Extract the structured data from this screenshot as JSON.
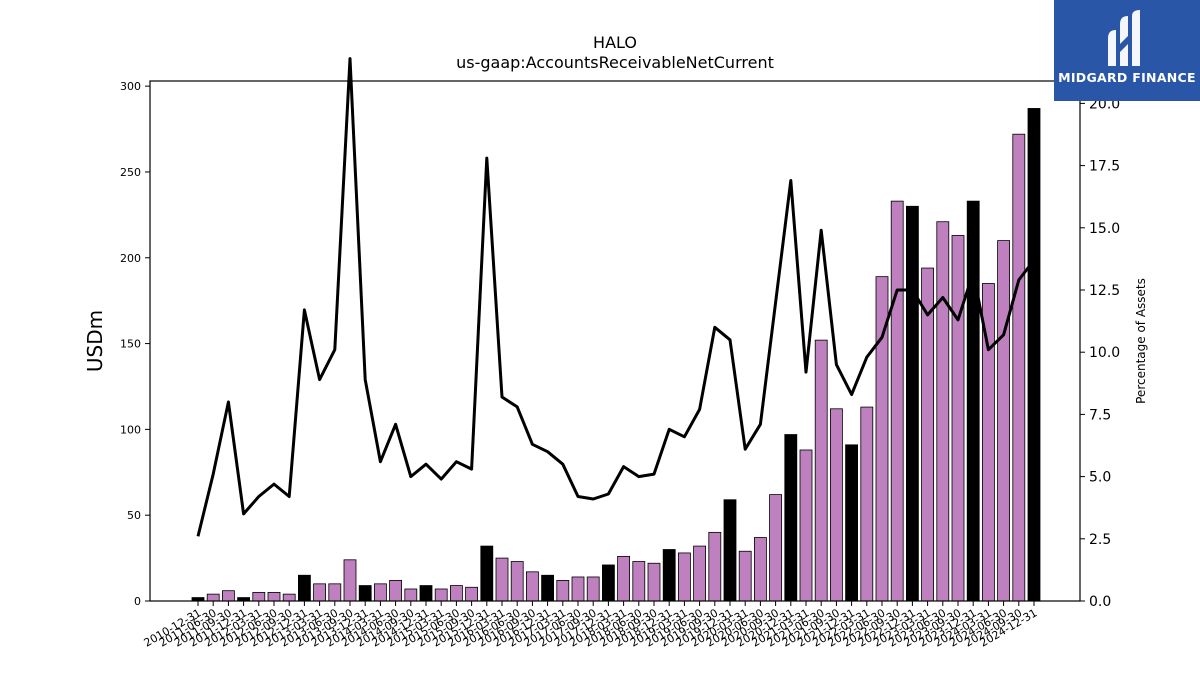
{
  "chart_data": {
    "type": "bar+line",
    "title": "HALO",
    "subtitle": "us-gaap:AccountsReceivableNetCurrent",
    "ylabel_left": "USDm",
    "ylabel_right": "Percentage of Assets",
    "ylim_left": [
      0,
      303
    ],
    "ylim_right": [
      0,
      20.9
    ],
    "yticks_left": [
      "0",
      "50",
      "100",
      "150",
      "200",
      "250",
      "300"
    ],
    "yticks_right": [
      "0.0",
      "2.5",
      "5.0",
      "7.5",
      "10.0",
      "12.5",
      "15.0",
      "17.5",
      "20.0"
    ],
    "grid": false,
    "bar_colors": {
      "quarter": "#bf80bf",
      "year_end": "#000000"
    },
    "line_color": "#000000",
    "categories": [
      "2010-12-31",
      "2011-06-30",
      "2011-09-30",
      "2011-12-31",
      "2012-03-31",
      "2012-06-30",
      "2012-09-30",
      "2012-12-31",
      "2013-03-31",
      "2013-06-30",
      "2013-09-30",
      "2013-12-31",
      "2014-03-31",
      "2014-06-30",
      "2014-09-30",
      "2014-12-31",
      "2015-03-31",
      "2015-06-30",
      "2015-09-30",
      "2015-12-31",
      "2016-03-31",
      "2016-06-30",
      "2016-09-30",
      "2016-12-31",
      "2017-03-31",
      "2017-06-30",
      "2017-09-30",
      "2017-12-31",
      "2018-03-31",
      "2018-06-30",
      "2018-09-30",
      "2018-12-31",
      "2019-03-31",
      "2019-06-30",
      "2019-09-30",
      "2019-12-31",
      "2020-03-31",
      "2020-06-30",
      "2020-09-30",
      "2020-12-31",
      "2021-03-31",
      "2021-06-30",
      "2021-09-30",
      "2021-12-31",
      "2022-03-31",
      "2022-06-30",
      "2022-09-30",
      "2022-12-31",
      "2023-03-31",
      "2023-06-30",
      "2023-09-30",
      "2023-12-31",
      "2024-03-31",
      "2024-06-30",
      "2024-09-30",
      "2024-12-31"
    ],
    "series": [
      {
        "kind": "bar",
        "axis": "left",
        "values": [
          2,
          4,
          6,
          2,
          5,
          5,
          4,
          15,
          10,
          10,
          24,
          9,
          10,
          12,
          7,
          9,
          7,
          9,
          8,
          32,
          25,
          23,
          17,
          15,
          12,
          14,
          14,
          21,
          26,
          23,
          22,
          30,
          28,
          32,
          40,
          59,
          29,
          37,
          62,
          97,
          88,
          152,
          112,
          91,
          113,
          189,
          233,
          230,
          194,
          221,
          213,
          233,
          185,
          210,
          272,
          287
        ]
      },
      {
        "kind": "line",
        "axis": "right",
        "values": [
          2.6,
          5.1,
          8.0,
          3.5,
          4.2,
          4.7,
          4.2,
          11.7,
          8.9,
          10.1,
          21.8,
          8.9,
          5.6,
          7.1,
          5.0,
          5.5,
          4.9,
          5.6,
          5.3,
          17.8,
          8.2,
          7.8,
          6.3,
          6.0,
          5.5,
          4.2,
          4.1,
          4.3,
          5.4,
          5.0,
          5.1,
          6.9,
          6.6,
          7.7,
          11.0,
          10.5,
          6.1,
          7.1,
          12.0,
          16.9,
          9.2,
          14.9,
          9.5,
          8.3,
          9.8,
          10.6,
          12.5,
          12.5,
          11.5,
          12.2,
          11.3,
          13.2,
          10.1,
          10.7,
          12.9,
          13.7
        ]
      }
    ]
  },
  "logo": {
    "text": "MIDGARD FINANCE"
  }
}
